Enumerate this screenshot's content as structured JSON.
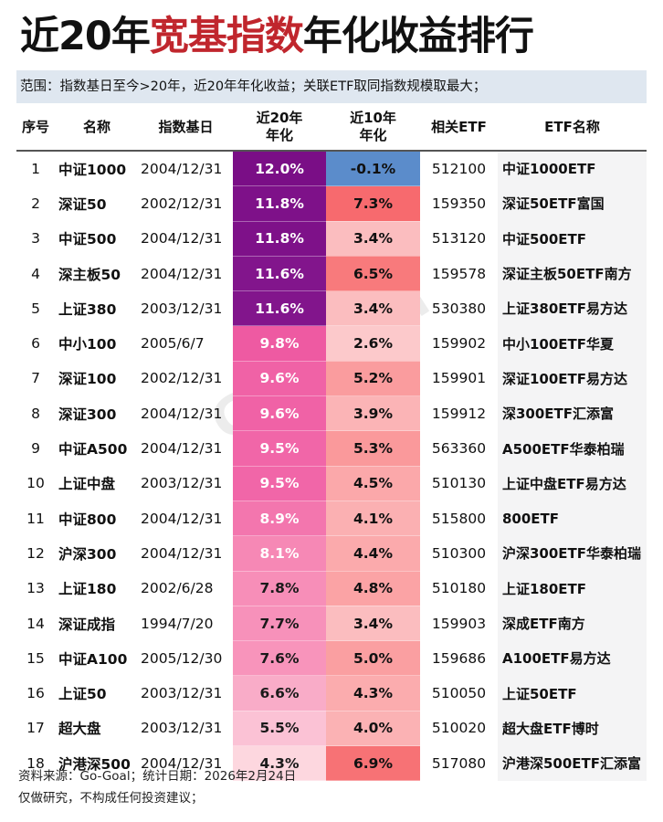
{
  "title": {
    "prefix": "近20年",
    "highlight": "宽基指数",
    "suffix": "年化收益排行",
    "highlight_color": "#c0262d"
  },
  "subtitle": "范围：指数基日至今>20年，近20年年化收益；关联ETF取同指数规模取最大；",
  "headers": {
    "idx": "序号",
    "name": "名称",
    "base_date": "指数基日",
    "r20_line1": "近20年",
    "r20_line2": "年化",
    "r10_line1": "近10年",
    "r10_line2": "年化",
    "etf_code": "相关ETF",
    "etf_name": "ETF名称"
  },
  "rows": [
    {
      "idx": "1",
      "name": "中证1000",
      "base_date": "2004/12/31",
      "r20": "12.0%",
      "r10": "-0.1%",
      "etf_code": "512100",
      "etf_name": "中证1000ETF",
      "r20_bg": "#7a0e86",
      "r20_fg": "#ffffff",
      "r10_bg": "#5b8ccb",
      "r10_fg": "#111111"
    },
    {
      "idx": "2",
      "name": "深证50",
      "base_date": "2002/12/31",
      "r20": "11.8%",
      "r10": "7.3%",
      "etf_code": "159350",
      "etf_name": "深证50ETF富国",
      "r20_bg": "#7e1189",
      "r20_fg": "#ffffff",
      "r10_bg": "#f76a6e",
      "r10_fg": "#111111"
    },
    {
      "idx": "3",
      "name": "中证500",
      "base_date": "2004/12/31",
      "r20": "11.8%",
      "r10": "3.4%",
      "etf_code": "513120",
      "etf_name": "中证500ETF",
      "r20_bg": "#7e1189",
      "r20_fg": "#ffffff",
      "r10_bg": "#fbbdbf",
      "r10_fg": "#111111"
    },
    {
      "idx": "4",
      "name": "深主板50",
      "base_date": "2004/12/31",
      "r20": "11.6%",
      "r10": "6.5%",
      "etf_code": "159578",
      "etf_name": "深证主板50ETF南方",
      "r20_bg": "#82158c",
      "r20_fg": "#ffffff",
      "r10_bg": "#f87a7c",
      "r10_fg": "#111111"
    },
    {
      "idx": "5",
      "name": "上证380",
      "base_date": "2003/12/31",
      "r20": "11.6%",
      "r10": "3.4%",
      "etf_code": "530380",
      "etf_name": "上证380ETF易方达",
      "r20_bg": "#82158c",
      "r20_fg": "#ffffff",
      "r10_bg": "#fbbdbf",
      "r10_fg": "#111111"
    },
    {
      "idx": "6",
      "name": "中小100",
      "base_date": "2005/6/7",
      "r20": "9.8%",
      "r10": "2.6%",
      "etf_code": "159902",
      "etf_name": "中小100ETF华夏",
      "r20_bg": "#ee5aa2",
      "r20_fg": "#ffffff",
      "r10_bg": "#fcc9cb",
      "r10_fg": "#111111"
    },
    {
      "idx": "7",
      "name": "深证100",
      "base_date": "2002/12/31",
      "r20": "9.6%",
      "r10": "5.2%",
      "etf_code": "159901",
      "etf_name": "深证100ETF易方达",
      "r20_bg": "#f062a6",
      "r20_fg": "#ffffff",
      "r10_bg": "#fa9c9e",
      "r10_fg": "#111111"
    },
    {
      "idx": "8",
      "name": "深证300",
      "base_date": "2004/12/31",
      "r20": "9.6%",
      "r10": "3.9%",
      "etf_code": "159912",
      "etf_name": "深300ETF汇添富",
      "r20_bg": "#f062a6",
      "r20_fg": "#ffffff",
      "r10_bg": "#fbb4b6",
      "r10_fg": "#111111"
    },
    {
      "idx": "9",
      "name": "中证A500",
      "base_date": "2004/12/31",
      "r20": "9.5%",
      "r10": "5.3%",
      "etf_code": "563360",
      "etf_name": "A500ETF华泰柏瑞",
      "r20_bg": "#f166a8",
      "r20_fg": "#ffffff",
      "r10_bg": "#fa999b",
      "r10_fg": "#111111"
    },
    {
      "idx": "10",
      "name": "上证中盘",
      "base_date": "2003/12/31",
      "r20": "9.5%",
      "r10": "4.5%",
      "etf_code": "510130",
      "etf_name": "上证中盘ETF易方达",
      "r20_bg": "#f166a8",
      "r20_fg": "#ffffff",
      "r10_bg": "#fba8aa",
      "r10_fg": "#111111"
    },
    {
      "idx": "11",
      "name": "中证800",
      "base_date": "2004/12/31",
      "r20": "8.9%",
      "r10": "4.1%",
      "etf_code": "515800",
      "etf_name": "800ETF",
      "r20_bg": "#f376ae",
      "r20_fg": "#ffffff",
      "r10_bg": "#fbb0b2",
      "r10_fg": "#111111"
    },
    {
      "idx": "12",
      "name": "沪深300",
      "base_date": "2004/12/31",
      "r20": "8.1%",
      "r10": "4.4%",
      "etf_code": "510300",
      "etf_name": "沪深300ETF华泰柏瑞",
      "r20_bg": "#f688b5",
      "r20_fg": "#ffffff",
      "r10_bg": "#fbaaac",
      "r10_fg": "#111111"
    },
    {
      "idx": "13",
      "name": "上证180",
      "base_date": "2002/6/28",
      "r20": "7.8%",
      "r10": "4.8%",
      "etf_code": "510180",
      "etf_name": "上证180ETF",
      "r20_bg": "#f78eb8",
      "r20_fg": "#1a1a1a",
      "r10_bg": "#fba3a5",
      "r10_fg": "#111111"
    },
    {
      "idx": "14",
      "name": "深证成指",
      "base_date": "1994/7/20",
      "r20": "7.7%",
      "r10": "3.4%",
      "etf_code": "159903",
      "etf_name": "深成ETF南方",
      "r20_bg": "#f791ba",
      "r20_fg": "#1a1a1a",
      "r10_bg": "#fbbdbf",
      "r10_fg": "#111111"
    },
    {
      "idx": "15",
      "name": "中证A100",
      "base_date": "2005/12/30",
      "r20": "7.6%",
      "r10": "5.0%",
      "etf_code": "159686",
      "etf_name": "A100ETF易方达",
      "r20_bg": "#f894bb",
      "r20_fg": "#1a1a1a",
      "r10_bg": "#fa9fa1",
      "r10_fg": "#111111"
    },
    {
      "idx": "16",
      "name": "上证50",
      "base_date": "2003/12/31",
      "r20": "6.6%",
      "r10": "4.3%",
      "etf_code": "510050",
      "etf_name": "上证50ETF",
      "r20_bg": "#f9acc8",
      "r20_fg": "#1a1a1a",
      "r10_bg": "#fbacae",
      "r10_fg": "#111111"
    },
    {
      "idx": "17",
      "name": "超大盘",
      "base_date": "2003/12/31",
      "r20": "5.5%",
      "r10": "4.0%",
      "etf_code": "510020",
      "etf_name": "超大盘ETF博时",
      "r20_bg": "#fbc2d5",
      "r20_fg": "#1a1a1a",
      "r10_bg": "#fbb2b4",
      "r10_fg": "#111111"
    },
    {
      "idx": "18",
      "name": "沪港深500",
      "base_date": "2004/12/31",
      "r20": "4.3%",
      "r10": "6.9%",
      "etf_code": "517080",
      "etf_name": "沪港深500ETF汇添富",
      "r20_bg": "#fdd7df",
      "r20_fg": "#1a1a1a",
      "r10_bg": "#f77275",
      "r10_fg": "#111111"
    }
  ],
  "footer": {
    "source": "资料来源：Go-Goal；统计日期：2026年2月24日",
    "disclaimer": "仅做研究，不构成任何投资建议；"
  },
  "watermark": "Go-Goal",
  "chart_data": {
    "type": "table",
    "title": "近20年宽基指数年化收益排行",
    "subtitle": "范围：指数基日至今>20年，近20年年化收益；关联ETF取同指数规模取最大；",
    "columns": [
      "序号",
      "名称",
      "指数基日",
      "近20年年化",
      "近10年年化",
      "相关ETF",
      "ETF名称"
    ],
    "rows": [
      [
        1,
        "中证1000",
        "2004/12/31",
        12.0,
        -0.1,
        "512100",
        "中证1000ETF"
      ],
      [
        2,
        "深证50",
        "2002/12/31",
        11.8,
        7.3,
        "159350",
        "深证50ETF富国"
      ],
      [
        3,
        "中证500",
        "2004/12/31",
        11.8,
        3.4,
        "513120",
        "中证500ETF"
      ],
      [
        4,
        "深主板50",
        "2004/12/31",
        11.6,
        6.5,
        "159578",
        "深证主板50ETF南方"
      ],
      [
        5,
        "上证380",
        "2003/12/31",
        11.6,
        3.4,
        "530380",
        "上证380ETF易方达"
      ],
      [
        6,
        "中小100",
        "2005/6/7",
        9.8,
        2.6,
        "159902",
        "中小100ETF华夏"
      ],
      [
        7,
        "深证100",
        "2002/12/31",
        9.6,
        5.2,
        "159901",
        "深证100ETF易方达"
      ],
      [
        8,
        "深证300",
        "2004/12/31",
        9.6,
        3.9,
        "159912",
        "深300ETF汇添富"
      ],
      [
        9,
        "中证A500",
        "2004/12/31",
        9.5,
        5.3,
        "563360",
        "A500ETF华泰柏瑞"
      ],
      [
        10,
        "上证中盘",
        "2003/12/31",
        9.5,
        4.5,
        "510130",
        "上证中盘ETF易方达"
      ],
      [
        11,
        "中证800",
        "2004/12/31",
        8.9,
        4.1,
        "515800",
        "800ETF"
      ],
      [
        12,
        "沪深300",
        "2004/12/31",
        8.1,
        4.4,
        "510300",
        "沪深300ETF华泰柏瑞"
      ],
      [
        13,
        "上证180",
        "2002/6/28",
        7.8,
        4.8,
        "510180",
        "上证180ETF"
      ],
      [
        14,
        "深证成指",
        "1994/7/20",
        7.7,
        3.4,
        "159903",
        "深成ETF南方"
      ],
      [
        15,
        "中证A100",
        "2005/12/30",
        7.6,
        5.0,
        "159686",
        "A100ETF易方达"
      ],
      [
        16,
        "上证50",
        "2003/12/31",
        6.6,
        4.3,
        "510050",
        "上证50ETF"
      ],
      [
        17,
        "超大盘",
        "2003/12/31",
        5.5,
        4.0,
        "510020",
        "超大盘ETF博时"
      ],
      [
        18,
        "沪港深500",
        "2004/12/31",
        4.3,
        6.9,
        "517080",
        "沪港深500ETF汇添富"
      ]
    ],
    "units": "%",
    "notes": [
      "资料来源：Go-Goal；统计日期：2026年2月24日",
      "仅做研究，不构成任何投资建议；"
    ]
  }
}
